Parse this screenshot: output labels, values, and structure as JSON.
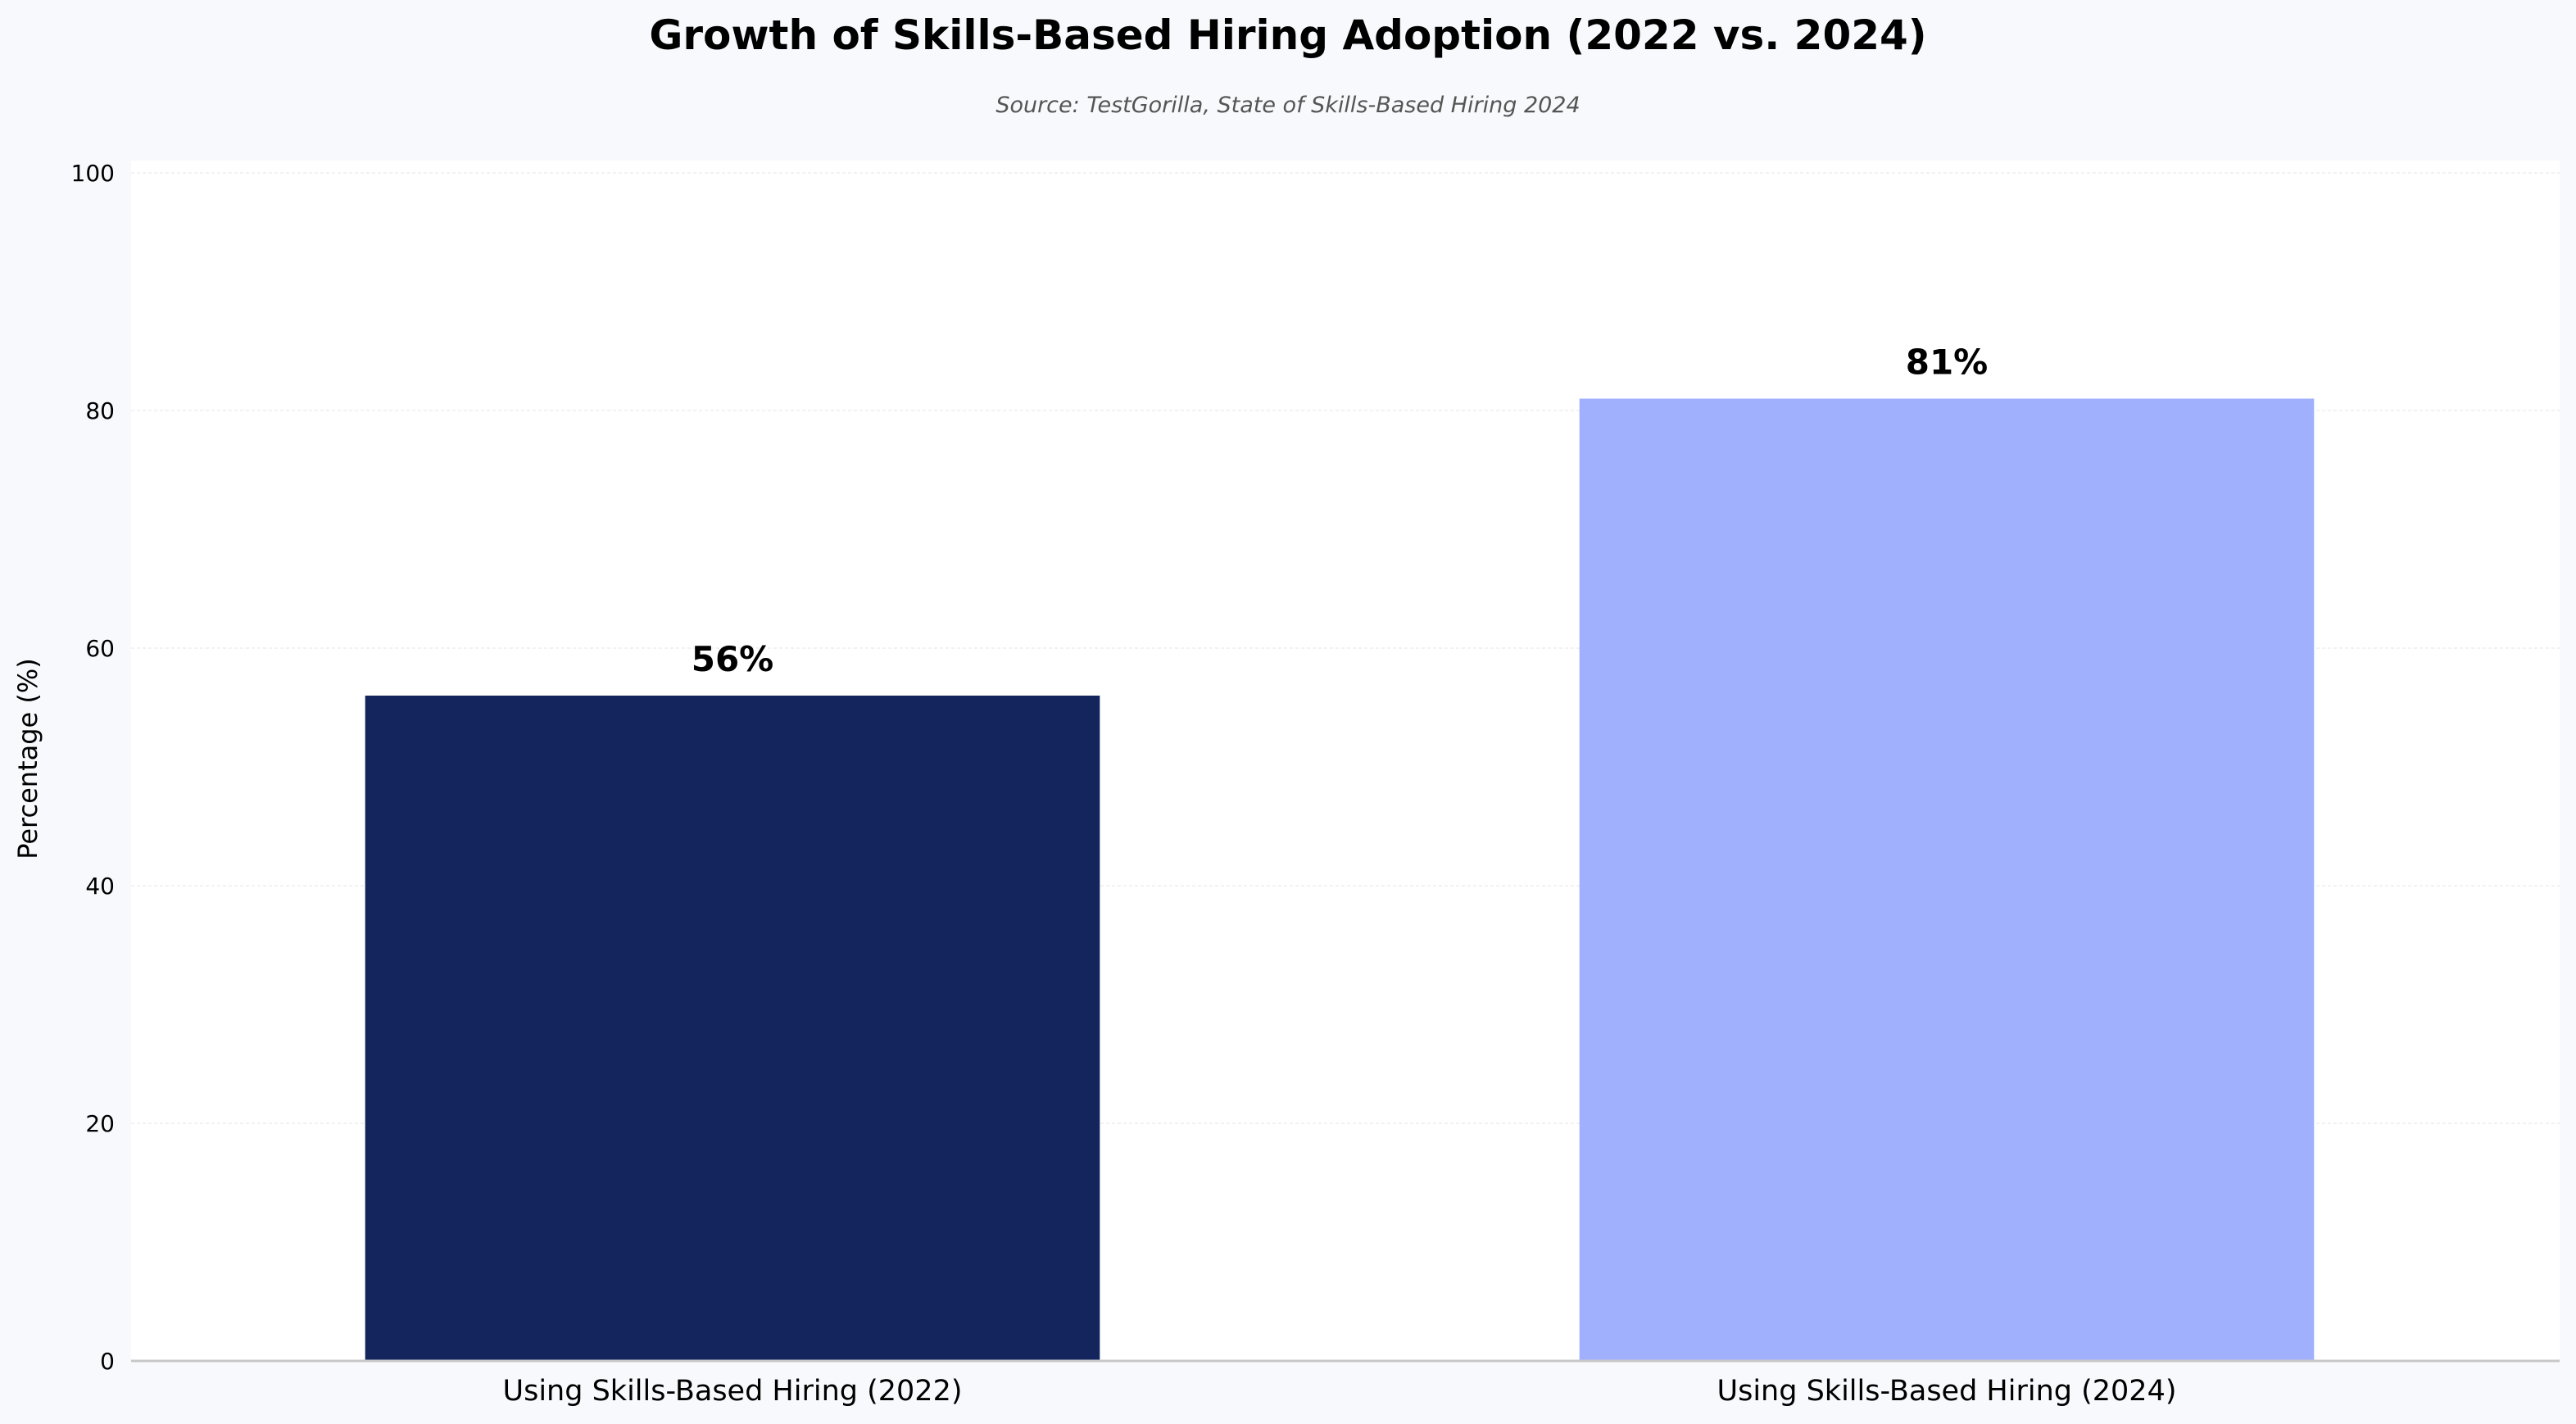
{
  "chart_data": {
    "type": "bar",
    "title": "Growth of Skills-Based Hiring Adoption (2022 vs. 2024)",
    "subtitle": "Source: TestGorilla, State of Skills-Based Hiring 2024",
    "categories": [
      "Using Skills-Based Hiring (2022)",
      "Using Skills-Based Hiring (2024)"
    ],
    "values": [
      56,
      81
    ],
    "data_labels": [
      "56%",
      "81%"
    ],
    "colors": [
      "#14245c",
      "#a0b0fd"
    ],
    "xlabel": "",
    "ylabel": "Percentage (%)",
    "ylim": [
      0,
      100
    ],
    "yticks": [
      0,
      20,
      40,
      60,
      80,
      100
    ],
    "grid": true,
    "plot_background": "#ffffff",
    "page_background": "#f7f9fc"
  }
}
